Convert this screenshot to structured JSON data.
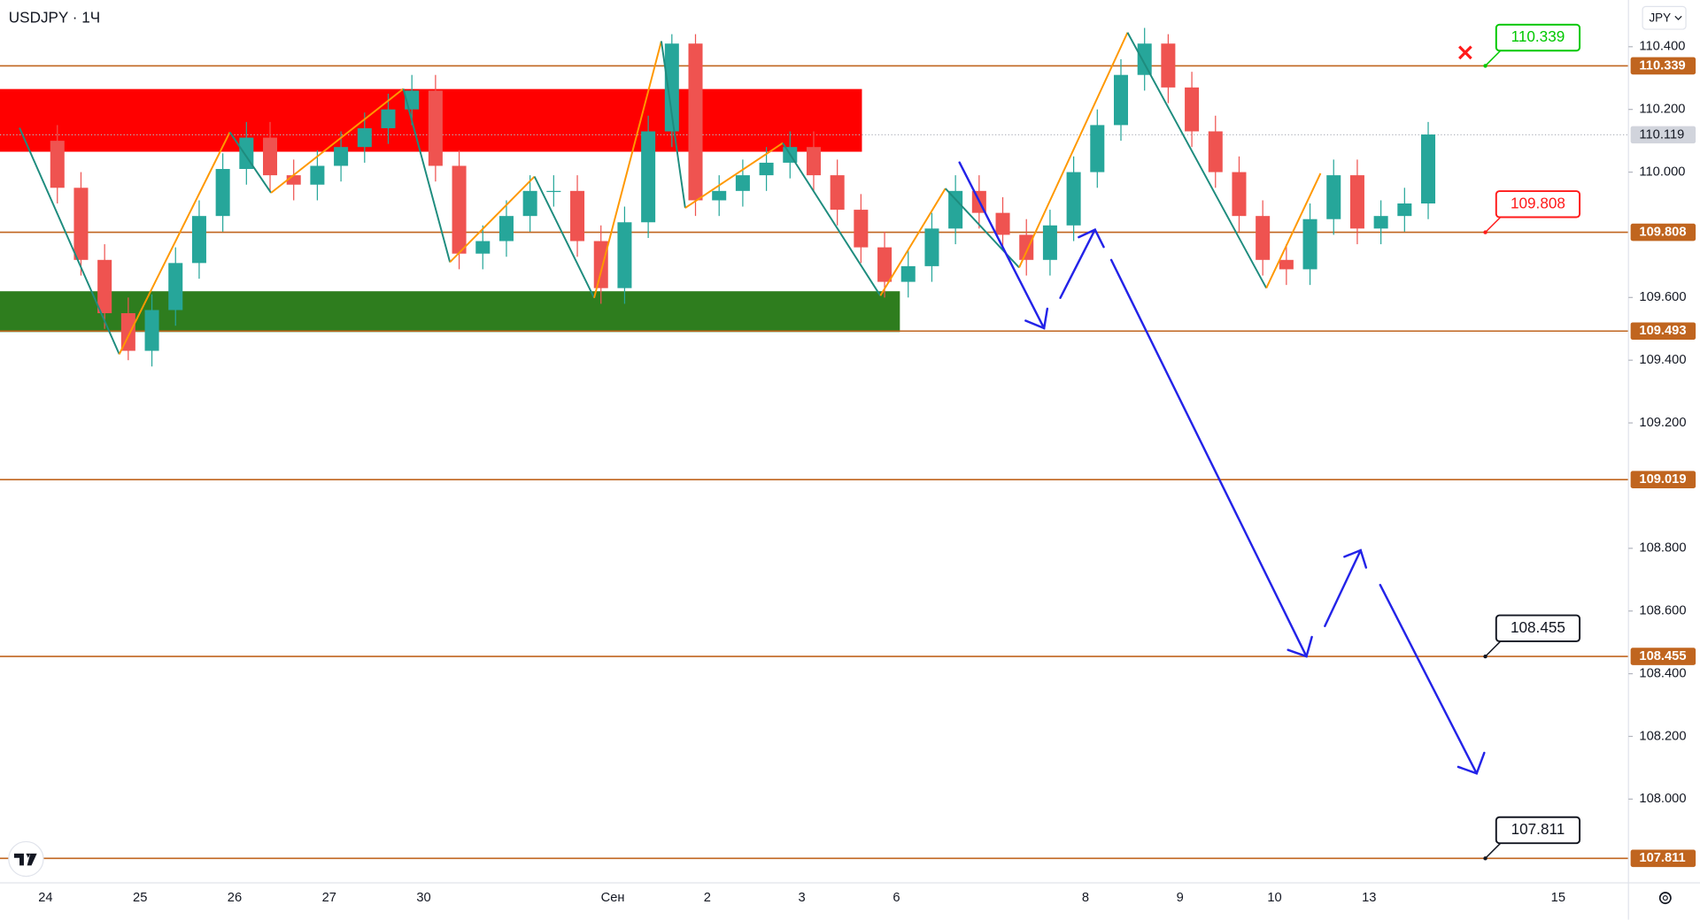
{
  "chart_data": {
    "type": "candlestick",
    "title": "USDJPY · 1Ч",
    "currency": "JPY",
    "categories": [
      "24",
      null,
      null,
      null,
      "25",
      null,
      null,
      null,
      "26",
      null,
      null,
      null,
      "27",
      null,
      null,
      null,
      "30",
      null,
      null,
      null,
      null,
      null,
      null,
      null,
      "Сен",
      null,
      null,
      null,
      "2",
      null,
      null,
      null,
      "3",
      null,
      null,
      null,
      "6",
      null,
      null,
      null,
      null,
      null,
      null,
      null,
      "8",
      null,
      null,
      null,
      "9",
      null,
      null,
      null,
      "10",
      null,
      null,
      null,
      "13",
      null,
      null,
      null,
      null,
      null,
      null,
      null,
      "15",
      null,
      null,
      null
    ],
    "open": [
      110.1,
      109.95,
      109.72,
      109.55,
      109.43,
      109.56,
      109.71,
      109.86,
      110.01,
      110.11,
      109.99,
      109.96,
      110.02,
      110.08,
      110.14,
      110.2,
      110.26,
      110.02,
      109.74,
      109.78,
      109.86,
      109.94,
      109.94,
      109.78,
      109.63,
      109.84,
      110.13,
      110.41,
      109.91,
      109.94,
      109.99,
      110.03,
      110.08,
      109.99,
      109.88,
      109.76,
      109.65,
      109.7,
      109.82,
      109.94,
      109.87,
      109.8,
      109.72,
      109.83,
      110.0,
      110.15,
      110.31,
      110.41,
      110.27,
      110.13,
      110.0,
      109.86,
      109.72,
      109.69,
      109.85,
      109.99,
      109.82,
      109.86,
      109.9,
      null,
      null,
      null,
      null,
      null,
      null,
      null,
      null,
      null
    ],
    "high": [
      110.15,
      110.0,
      109.77,
      109.6,
      109.61,
      109.76,
      109.91,
      110.06,
      110.16,
      110.16,
      110.04,
      110.07,
      110.13,
      110.19,
      110.25,
      110.31,
      110.31,
      110.07,
      109.83,
      109.91,
      109.99,
      109.99,
      109.99,
      109.83,
      109.89,
      110.18,
      110.44,
      110.44,
      109.99,
      110.04,
      110.08,
      110.13,
      110.13,
      110.04,
      109.93,
      109.81,
      109.75,
      109.87,
      109.99,
      109.99,
      109.92,
      109.85,
      109.88,
      110.05,
      110.2,
      110.36,
      110.46,
      110.44,
      110.32,
      110.18,
      110.05,
      109.91,
      109.77,
      109.9,
      110.04,
      110.04,
      109.91,
      109.95,
      110.16,
      null,
      null,
      null,
      null,
      null,
      null,
      null,
      null,
      null
    ],
    "low": [
      109.9,
      109.67,
      109.5,
      109.4,
      109.38,
      109.51,
      109.66,
      109.81,
      109.96,
      109.94,
      109.91,
      109.91,
      109.97,
      110.03,
      110.09,
      110.15,
      109.97,
      109.69,
      109.69,
      109.73,
      109.81,
      109.89,
      109.73,
      109.58,
      109.58,
      109.79,
      110.08,
      109.86,
      109.86,
      109.89,
      109.94,
      109.98,
      109.94,
      109.83,
      109.71,
      109.6,
      109.6,
      109.65,
      109.77,
      109.82,
      109.75,
      109.67,
      109.67,
      109.78,
      109.95,
      110.1,
      110.26,
      110.22,
      110.08,
      109.95,
      109.81,
      109.67,
      109.64,
      109.64,
      109.8,
      109.77,
      109.77,
      109.81,
      109.85,
      null,
      null,
      null,
      null,
      null,
      null,
      null,
      null,
      null
    ],
    "close": [
      109.95,
      109.72,
      109.55,
      109.43,
      109.56,
      109.71,
      109.86,
      110.01,
      110.11,
      109.99,
      109.96,
      110.02,
      110.08,
      110.14,
      110.2,
      110.26,
      110.02,
      109.74,
      109.78,
      109.86,
      109.94,
      109.94,
      109.78,
      109.63,
      109.84,
      110.13,
      110.41,
      109.91,
      109.94,
      109.99,
      110.03,
      110.08,
      109.99,
      109.88,
      109.76,
      109.65,
      109.7,
      109.82,
      109.94,
      109.87,
      109.8,
      109.72,
      109.83,
      110.0,
      110.15,
      110.31,
      110.41,
      110.27,
      110.13,
      110.0,
      109.86,
      109.72,
      109.69,
      109.85,
      109.99,
      109.82,
      109.86,
      109.9,
      110.12,
      null,
      null,
      null,
      null,
      null,
      null,
      null,
      null,
      null
    ],
    "up_color": "#26a69a",
    "down_color": "#ef5350",
    "ylim": [
      107.733,
      110.549
    ],
    "yticks": [
      {
        "value": 110.4,
        "label": "110.400"
      },
      {
        "value": 110.2,
        "label": "110.200"
      },
      {
        "value": 110.0,
        "label": "110.000"
      },
      {
        "value": 109.6,
        "label": "109.600"
      },
      {
        "value": 109.4,
        "label": "109.400"
      },
      {
        "value": 109.2,
        "label": "109.200"
      },
      {
        "value": 108.8,
        "label": "108.800"
      },
      {
        "value": 108.6,
        "label": "108.600"
      },
      {
        "value": 108.4,
        "label": "108.400"
      },
      {
        "value": 108.2,
        "label": "108.200"
      },
      {
        "value": 108.0,
        "label": "108.000"
      }
    ],
    "level_color": "#c0651f",
    "levels": [
      {
        "value": 110.339,
        "callout_color": "#00c800"
      },
      {
        "value": 109.808,
        "callout_color": "#ff1a1a"
      },
      {
        "value": 109.493
      },
      {
        "value": 109.019
      },
      {
        "value": 108.455,
        "callout_color": "#131722"
      },
      {
        "value": 107.811,
        "callout_color": "#131722"
      }
    ],
    "last_price": {
      "value": 110.119,
      "label": "110.119"
    },
    "zones": [
      {
        "from": 110.065,
        "to": 110.265,
        "color": "#ff0000"
      },
      {
        "from": 109.49,
        "to": 109.62,
        "color": "#2e7d1e"
      }
    ]
  }
}
